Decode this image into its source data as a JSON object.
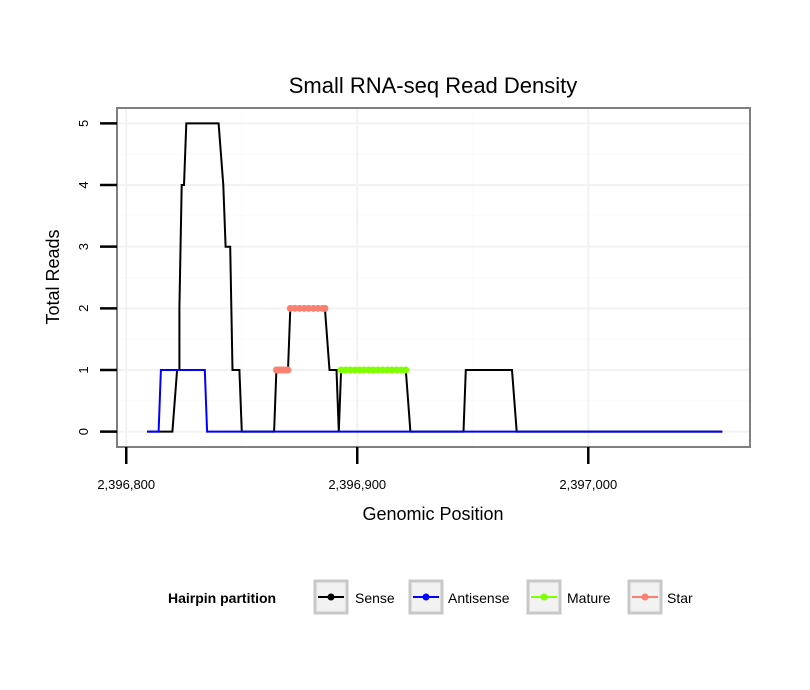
{
  "chart_data": {
    "type": "line",
    "title": "Small RNA-seq Read Density",
    "xlabel": "Genomic Position",
    "ylabel": "Total Reads",
    "xlim": [
      2396796,
      2397070
    ],
    "ylim": [
      -0.25,
      5.25
    ],
    "xticks": [
      {
        "value": 2396800,
        "label": "2,396,800"
      },
      {
        "value": 2396900,
        "label": "2,396,900"
      },
      {
        "value": 2397000,
        "label": "2,397,000"
      }
    ],
    "yticks": [
      {
        "value": 0,
        "label": "0"
      },
      {
        "value": 1,
        "label": "1"
      },
      {
        "value": 2,
        "label": "2"
      },
      {
        "value": 3,
        "label": "3"
      },
      {
        "value": 4,
        "label": "4"
      },
      {
        "value": 5,
        "label": "5"
      }
    ],
    "legend": {
      "title": "Hairpin partition",
      "position": "bottom",
      "entries": [
        {
          "name": "Sense",
          "color": "#000000"
        },
        {
          "name": "Antisense",
          "color": "#0000ff"
        },
        {
          "name": "Mature",
          "color": "#7fff00"
        },
        {
          "name": "Star",
          "color": "#fa8072"
        }
      ]
    },
    "series": [
      {
        "name": "Sense",
        "color": "#000000",
        "x": [
          2396809,
          2396820,
          2396822,
          2396823,
          2396823,
          2396824,
          2396825,
          2396826,
          2396840,
          2396842,
          2396843,
          2396845,
          2396846,
          2396849,
          2396850,
          2396864,
          2396865,
          2396870,
          2396871,
          2396886,
          2396888,
          2396891,
          2396892,
          2396893,
          2396895,
          2396921,
          2396923,
          2396946,
          2396947,
          2396967,
          2396969,
          2397058
        ],
        "y": [
          0,
          0,
          1,
          1,
          2,
          4,
          4,
          5,
          5,
          4,
          3,
          3,
          1,
          1,
          0,
          0,
          1,
          1,
          2,
          2,
          1,
          1,
          0,
          1,
          1,
          1,
          0,
          0,
          1,
          1,
          0,
          0
        ]
      },
      {
        "name": "Antisense",
        "color": "#0000ff",
        "x": [
          2396809,
          2396814,
          2396815,
          2396834,
          2396835,
          2397058
        ],
        "y": [
          0,
          0,
          1,
          1,
          0,
          0
        ]
      },
      {
        "name": "Mature",
        "color": "#7fff00",
        "marker_x": [
          2396893,
          2396895,
          2396897,
          2396899,
          2396901,
          2396903,
          2396905,
          2396907,
          2396909,
          2396911,
          2396913,
          2396915,
          2396917,
          2396919,
          2396921
        ],
        "marker_y": 1
      },
      {
        "name": "Star",
        "color": "#fa8072",
        "segments": [
          {
            "x": [
              2396865,
              2396866,
              2396867,
              2396868,
              2396869,
              2396870
            ],
            "y": 1
          },
          {
            "x": [
              2396871,
              2396873,
              2396875,
              2396877,
              2396879,
              2396881,
              2396883,
              2396885,
              2396886
            ],
            "y": 2
          }
        ]
      }
    ]
  }
}
